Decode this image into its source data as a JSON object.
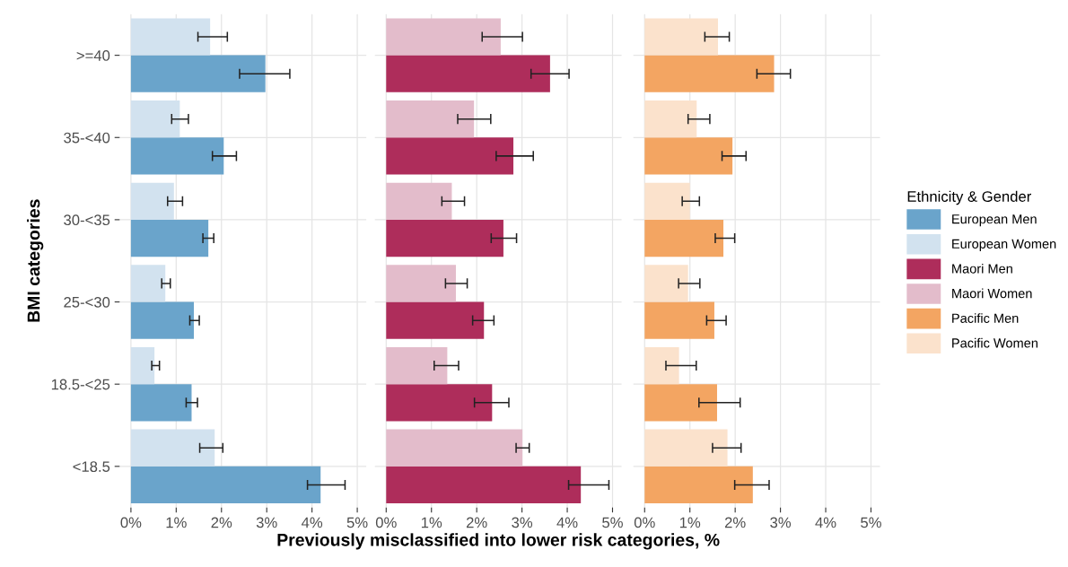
{
  "chart_data": [
    {
      "type": "bar",
      "orientation": "horizontal",
      "legend": "right",
      "ylabel": "BMI categories",
      "categories": [
        ">=40",
        "35-<40",
        "30-<35",
        "25-<30",
        "18.5-<25",
        "<18.5"
      ],
      "xlim": [
        -0.25,
        5.2
      ],
      "xticks": [
        {
          "value": 0,
          "label": "0%"
        },
        {
          "value": 1,
          "label": "1%"
        },
        {
          "value": 2,
          "label": "2%"
        },
        {
          "value": 3,
          "label": "3%"
        },
        {
          "value": 4,
          "label": "4%"
        },
        {
          "value": 5,
          "label": "5%"
        }
      ],
      "grid": true,
      "series": [
        {
          "name": "European Men",
          "color": "#6aa4cb",
          "values": [
            2.97,
            2.05,
            1.71,
            1.39,
            1.34,
            4.19
          ],
          "errors": [
            [
              2.4,
              3.51
            ],
            [
              1.8,
              2.33
            ],
            [
              1.59,
              1.83
            ],
            [
              1.3,
              1.51
            ],
            [
              1.22,
              1.47
            ],
            [
              3.9,
              4.73
            ]
          ]
        },
        {
          "name": "European Women",
          "color": "#d2e2ef",
          "values": [
            1.75,
            1.08,
            0.95,
            0.76,
            0.52,
            1.85
          ],
          "errors": [
            [
              1.48,
              2.13
            ],
            [
              0.9,
              1.27
            ],
            [
              0.81,
              1.14
            ],
            [
              0.68,
              0.87
            ],
            [
              0.46,
              0.63
            ],
            [
              1.52,
              2.03
            ]
          ]
        }
      ]
    },
    {
      "type": "bar",
      "orientation": "horizontal",
      "legend": "right",
      "xlabel": "Previously misclassified into lower risk categories, %",
      "categories": [
        null,
        null,
        null,
        null,
        null,
        null
      ],
      "tick_labels": "x",
      "xlim": [
        -0.25,
        5.2
      ],
      "xticks": [
        {
          "value": 0,
          "label": "0%"
        },
        {
          "value": 1,
          "label": "1%"
        },
        {
          "value": 2,
          "label": "2%"
        },
        {
          "value": 3,
          "label": "3%"
        },
        {
          "value": 4,
          "label": "4%"
        },
        {
          "value": 5,
          "label": "5%"
        }
      ],
      "grid": true,
      "series": [
        {
          "name": "Maori Men",
          "color": "#ae2d5b",
          "values": [
            3.62,
            2.81,
            2.59,
            2.16,
            2.34,
            4.3
          ],
          "errors": [
            [
              3.2,
              4.04
            ],
            [
              2.43,
              3.25
            ],
            [
              2.32,
              2.88
            ],
            [
              1.91,
              2.38
            ],
            [
              1.95,
              2.71
            ],
            [
              4.03,
              4.92
            ]
          ]
        },
        {
          "name": "Maori Women",
          "color": "#e3bccb",
          "values": [
            2.53,
            1.94,
            1.45,
            1.54,
            1.35,
            3.01
          ],
          "errors": [
            [
              2.12,
              3.01
            ],
            [
              1.58,
              2.31
            ],
            [
              1.23,
              1.73
            ],
            [
              1.31,
              1.79
            ],
            [
              1.06,
              1.6
            ],
            [
              2.87,
              3.16
            ]
          ]
        }
      ]
    },
    {
      "type": "bar",
      "orientation": "horizontal",
      "legend_title": "Ethnicity & Gender",
      "legend": "right",
      "categories": [
        null,
        null,
        null,
        null,
        null,
        null
      ],
      "tick_labels": "x",
      "xlim": [
        -0.25,
        5.2
      ],
      "xticks": [
        {
          "value": 0,
          "label": "0%"
        },
        {
          "value": 1,
          "label": "1%"
        },
        {
          "value": 2,
          "label": "2%"
        },
        {
          "value": 3,
          "label": "3%"
        },
        {
          "value": 4,
          "label": "4%"
        },
        {
          "value": 5,
          "label": "5%"
        }
      ],
      "grid": true,
      "series": [
        {
          "name": "Pacific Men",
          "color": "#f3a562",
          "values": [
            2.86,
            1.94,
            1.74,
            1.54,
            1.6,
            2.39
          ],
          "errors": [
            [
              2.48,
              3.22
            ],
            [
              1.71,
              2.24
            ],
            [
              1.56,
              1.99
            ],
            [
              1.37,
              1.8
            ],
            [
              1.2,
              2.11
            ],
            [
              1.99,
              2.75
            ]
          ]
        },
        {
          "name": "Pacific Women",
          "color": "#fbe2cc",
          "values": [
            1.62,
            1.15,
            1.0,
            0.96,
            0.76,
            1.83
          ],
          "errors": [
            [
              1.33,
              1.87
            ],
            [
              0.96,
              1.44
            ],
            [
              0.83,
              1.21
            ],
            [
              0.75,
              1.22
            ],
            [
              0.47,
              1.14
            ],
            [
              1.5,
              2.13
            ]
          ]
        }
      ]
    }
  ]
}
